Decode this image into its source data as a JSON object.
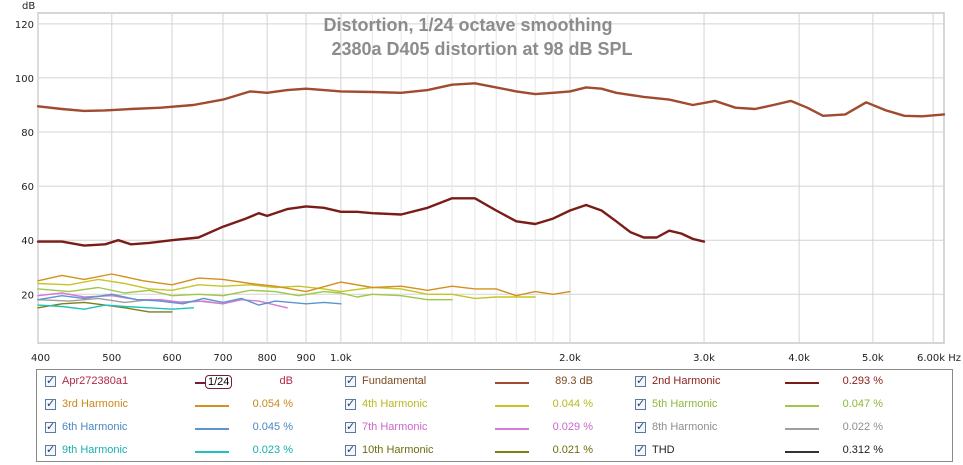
{
  "chart_data": {
    "type": "line",
    "title": "Distortion, 1/24 octave smoothing",
    "subtitle": "2380a D405 distortion at 98 dB SPL",
    "ylabel": "dB",
    "xunit": "Hz",
    "xscale": "log",
    "xlim": [
      400,
      6200
    ],
    "ylim": [
      2,
      124
    ],
    "grid": true,
    "y_ticks": [
      "20",
      "40",
      "60",
      "80",
      "100",
      "120"
    ],
    "x_ticks": [
      {
        "v": 400,
        "label": "400"
      },
      {
        "v": 500,
        "label": "500"
      },
      {
        "v": 600,
        "label": "600"
      },
      {
        "v": 700,
        "label": "700"
      },
      {
        "v": 800,
        "label": "800"
      },
      {
        "v": 900,
        "label": "900"
      },
      {
        "v": 1000,
        "label": "1.0k"
      },
      {
        "v": 2000,
        "label": "2.0k"
      },
      {
        "v": 3000,
        "label": "3.0k"
      },
      {
        "v": 4000,
        "label": "4.0k"
      },
      {
        "v": 5000,
        "label": "5.0k"
      },
      {
        "v": 6000,
        "label": "6.00k Hz"
      }
    ],
    "minor_x": [
      1100,
      1200,
      1300,
      1400,
      1500,
      1600,
      1700,
      1800,
      1900
    ],
    "series": [
      {
        "name": "Fundamental",
        "color": "#a04a2e",
        "width": 2.4,
        "x": [
          400,
          430,
          460,
          490,
          530,
          580,
          640,
          700,
          760,
          800,
          850,
          900,
          950,
          1000,
          1100,
          1200,
          1300,
          1400,
          1500,
          1600,
          1700,
          1800,
          1900,
          2000,
          2100,
          2200,
          2300,
          2500,
          2700,
          2900,
          3100,
          3300,
          3500,
          3700,
          3900,
          4100,
          4300,
          4600,
          4900,
          5200,
          5500,
          5800,
          6200
        ],
        "y": [
          89.5,
          88.5,
          87.8,
          88,
          88.5,
          89,
          90,
          92,
          95,
          94.5,
          95.5,
          96,
          95.5,
          95,
          94.8,
          94.5,
          95.5,
          97.5,
          98,
          96.5,
          95,
          94,
          94.5,
          95,
          96.5,
          96,
          94.5,
          93,
          92,
          90,
          91.5,
          89,
          88.5,
          90,
          91.5,
          89,
          86,
          86.5,
          91,
          88,
          86,
          85.8,
          86.5
        ]
      },
      {
        "name": "2nd Harmonic",
        "color": "#7a1c18",
        "width": 2.4,
        "x": [
          400,
          430,
          460,
          490,
          510,
          530,
          560,
          600,
          650,
          700,
          750,
          780,
          800,
          850,
          900,
          950,
          1000,
          1050,
          1100,
          1200,
          1300,
          1400,
          1500,
          1600,
          1700,
          1800,
          1900,
          2000,
          2100,
          2200,
          2300,
          2400,
          2500,
          2600,
          2700,
          2800,
          2900,
          3000
        ],
        "y": [
          39.5,
          39.5,
          38,
          38.5,
          40,
          38.5,
          39,
          40,
          41,
          45,
          48,
          50,
          49,
          51.5,
          52.5,
          52,
          50.5,
          50.5,
          50,
          49.5,
          52,
          55.5,
          55.5,
          51,
          47,
          46,
          48,
          51,
          53,
          51,
          47,
          43,
          41,
          41,
          43.5,
          42.5,
          40.5,
          39.5
        ]
      },
      {
        "name": "3rd Harmonic",
        "color": "#d4901e",
        "width": 1.4,
        "x": [
          400,
          430,
          460,
          500,
          550,
          600,
          650,
          700,
          760,
          820,
          900,
          1000,
          1100,
          1200,
          1300,
          1400,
          1500,
          1600,
          1700,
          1800,
          1900,
          2000
        ],
        "y": [
          25,
          27,
          25.5,
          27.5,
          25,
          23.5,
          26,
          25.5,
          24,
          23,
          21,
          24.5,
          22.5,
          23,
          21.5,
          23,
          22,
          22,
          19.5,
          21,
          20,
          21
        ]
      },
      {
        "name": "4th Harmonic",
        "color": "#c5c52a",
        "width": 1.4,
        "x": [
          400,
          440,
          480,
          520,
          560,
          600,
          650,
          700,
          760,
          820,
          880,
          950,
          1000,
          1100,
          1200,
          1300,
          1400,
          1500,
          1600,
          1700,
          1800
        ],
        "y": [
          24,
          23.5,
          25.5,
          24,
          22,
          21.5,
          23.5,
          23,
          23.5,
          22.5,
          23,
          22,
          21,
          22.5,
          22,
          20,
          20,
          18.5,
          19,
          19,
          19
        ]
      },
      {
        "name": "5th Harmonic",
        "color": "#a0c64a",
        "width": 1.4,
        "x": [
          400,
          440,
          480,
          520,
          560,
          600,
          650,
          700,
          760,
          820,
          880,
          950,
          1000,
          1050,
          1100,
          1200,
          1300,
          1400
        ],
        "y": [
          22,
          21,
          22.5,
          20.5,
          21.5,
          19.5,
          20,
          19.5,
          21.5,
          21,
          19.5,
          21,
          20.5,
          19,
          20,
          19.5,
          18,
          18
        ]
      },
      {
        "name": "6th Harmonic",
        "color": "#5b95cc",
        "width": 1.4,
        "x": [
          400,
          430,
          460,
          500,
          540,
          580,
          620,
          660,
          700,
          740,
          780,
          820,
          860,
          900,
          950,
          1000
        ],
        "y": [
          18,
          19.5,
          18.5,
          20,
          18,
          17.5,
          16.5,
          18.5,
          17,
          18.5,
          16,
          17.5,
          17,
          16.5,
          17,
          16.5
        ]
      },
      {
        "name": "7th Harmonic",
        "color": "#d878d8",
        "width": 1.4,
        "x": [
          400,
          430,
          460,
          500,
          540,
          580,
          620,
          660,
          700,
          740,
          780,
          820,
          850
        ],
        "y": [
          19.5,
          20.5,
          19,
          19.5,
          18,
          18,
          17,
          17.5,
          16.5,
          18,
          17.5,
          16,
          15
        ]
      },
      {
        "name": "8th Harmonic",
        "color": "#9e9e9e",
        "width": 1.4,
        "x": [
          400,
          440,
          480,
          520,
          560,
          600,
          650,
          700
        ],
        "y": [
          18,
          17.5,
          18.5,
          17,
          18,
          17,
          17.5,
          16.5
        ]
      },
      {
        "name": "9th Harmonic",
        "color": "#20c0c0",
        "width": 1.4,
        "x": [
          400,
          430,
          460,
          490,
          520,
          560,
          600,
          640
        ],
        "y": [
          16,
          15.5,
          14.5,
          16,
          15.5,
          15,
          14.5,
          15
        ]
      },
      {
        "name": "10th Harmonic",
        "color": "#7e7e12",
        "width": 1.4,
        "x": [
          400,
          430,
          460,
          490,
          520,
          560,
          600
        ],
        "y": [
          15,
          16.5,
          17,
          16,
          15,
          13.5,
          13.5
        ]
      }
    ]
  },
  "legend": {
    "rows": [
      [
        {
          "name": "Apr272380a1",
          "color": "#b02848",
          "line_color": "",
          "value": "dB",
          "value_color": "#b02848",
          "smoothing": "1/24"
        },
        {
          "name": "Fundamental",
          "color": "#7a4a20",
          "line_color": "#a04a2e",
          "value": "89.3 dB",
          "value_color": "#7a4a20",
          "smoothing": ""
        },
        {
          "name": "2nd Harmonic",
          "color": "#8a1c18",
          "line_color": "#7a1c18",
          "value": "0.293 %",
          "value_color": "#8a1c18",
          "smoothing": ""
        }
      ],
      [
        {
          "name": "3rd Harmonic",
          "color": "#c8881c",
          "line_color": "#d4901e",
          "value": "0.054 %",
          "value_color": "#c8881c",
          "smoothing": ""
        },
        {
          "name": "4th Harmonic",
          "color": "#b8b820",
          "line_color": "#c5c52a",
          "value": "0.044 %",
          "value_color": "#b8b820",
          "smoothing": ""
        },
        {
          "name": "5th Harmonic",
          "color": "#8cb83a",
          "line_color": "#a0c64a",
          "value": "0.047 %",
          "value_color": "#8cb83a",
          "smoothing": ""
        }
      ],
      [
        {
          "name": "6th Harmonic",
          "color": "#4a86c2",
          "line_color": "#5b95cc",
          "value": "0.045 %",
          "value_color": "#4a86c2",
          "smoothing": ""
        },
        {
          "name": "7th Harmonic",
          "color": "#cc66cc",
          "line_color": "#d878d8",
          "value": "0.029 %",
          "value_color": "#cc66cc",
          "smoothing": ""
        },
        {
          "name": "8th Harmonic",
          "color": "#8e8e8e",
          "line_color": "#9e9e9e",
          "value": "0.022 %",
          "value_color": "#8e8e8e",
          "smoothing": ""
        }
      ],
      [
        {
          "name": "9th Harmonic",
          "color": "#18b0b0",
          "line_color": "#20c0c0",
          "value": "0.023 %",
          "value_color": "#18b0b0",
          "smoothing": ""
        },
        {
          "name": "10th Harmonic",
          "color": "#6e6e10",
          "line_color": "#7e7e12",
          "value": "0.021 %",
          "value_color": "#6e6e10",
          "smoothing": ""
        },
        {
          "name": "THD",
          "color": "#222222",
          "line_color": "#333333",
          "value": "0.312 %",
          "value_color": "#222222",
          "smoothing": ""
        }
      ]
    ]
  }
}
